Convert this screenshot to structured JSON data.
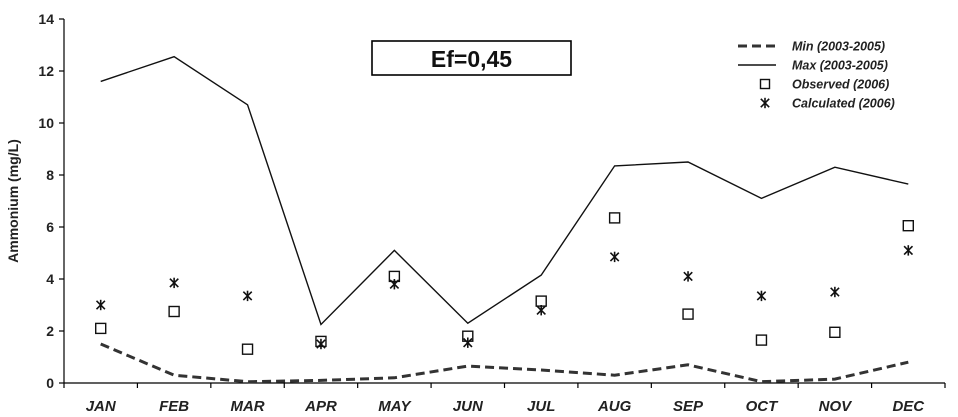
{
  "chart_data": {
    "type": "line",
    "categories": [
      "JAN",
      "FEB",
      "MAR",
      "APR",
      "MAY",
      "JUN",
      "JUL",
      "AUG",
      "SEP",
      "OCT",
      "NOV",
      "DEC"
    ],
    "ylabel": "Ammonium (mg/L)",
    "xlabel": "",
    "ylim": [
      0,
      14
    ],
    "yticks": [
      0,
      2,
      4,
      6,
      8,
      10,
      12,
      14
    ],
    "grid": false,
    "legend_position": "top-right",
    "annotation": "Ef=0,45",
    "series": [
      {
        "name": "Min (2003-2005)",
        "style": "dashed-line",
        "color": "#333333",
        "values": [
          1.5,
          0.3,
          0.05,
          0.1,
          0.2,
          0.65,
          0.5,
          0.3,
          0.7,
          0.05,
          0.15,
          0.8
        ]
      },
      {
        "name": "Max (2003-2005)",
        "style": "solid-line",
        "color": "#111111",
        "values": [
          11.6,
          12.55,
          10.7,
          2.25,
          5.1,
          2.3,
          4.15,
          8.35,
          8.5,
          7.1,
          8.3,
          7.65
        ]
      },
      {
        "name": "Observed (2006)",
        "style": "square-marker",
        "color": "#111111",
        "values": [
          2.1,
          2.75,
          1.3,
          1.6,
          4.1,
          1.8,
          3.15,
          6.35,
          2.65,
          1.65,
          1.95,
          6.05
        ]
      },
      {
        "name": "Calculated (2006)",
        "style": "star-marker",
        "color": "#111111",
        "values": [
          3.0,
          3.85,
          3.35,
          1.5,
          3.8,
          1.55,
          2.8,
          4.85,
          4.1,
          3.35,
          3.5,
          5.1
        ]
      }
    ]
  }
}
